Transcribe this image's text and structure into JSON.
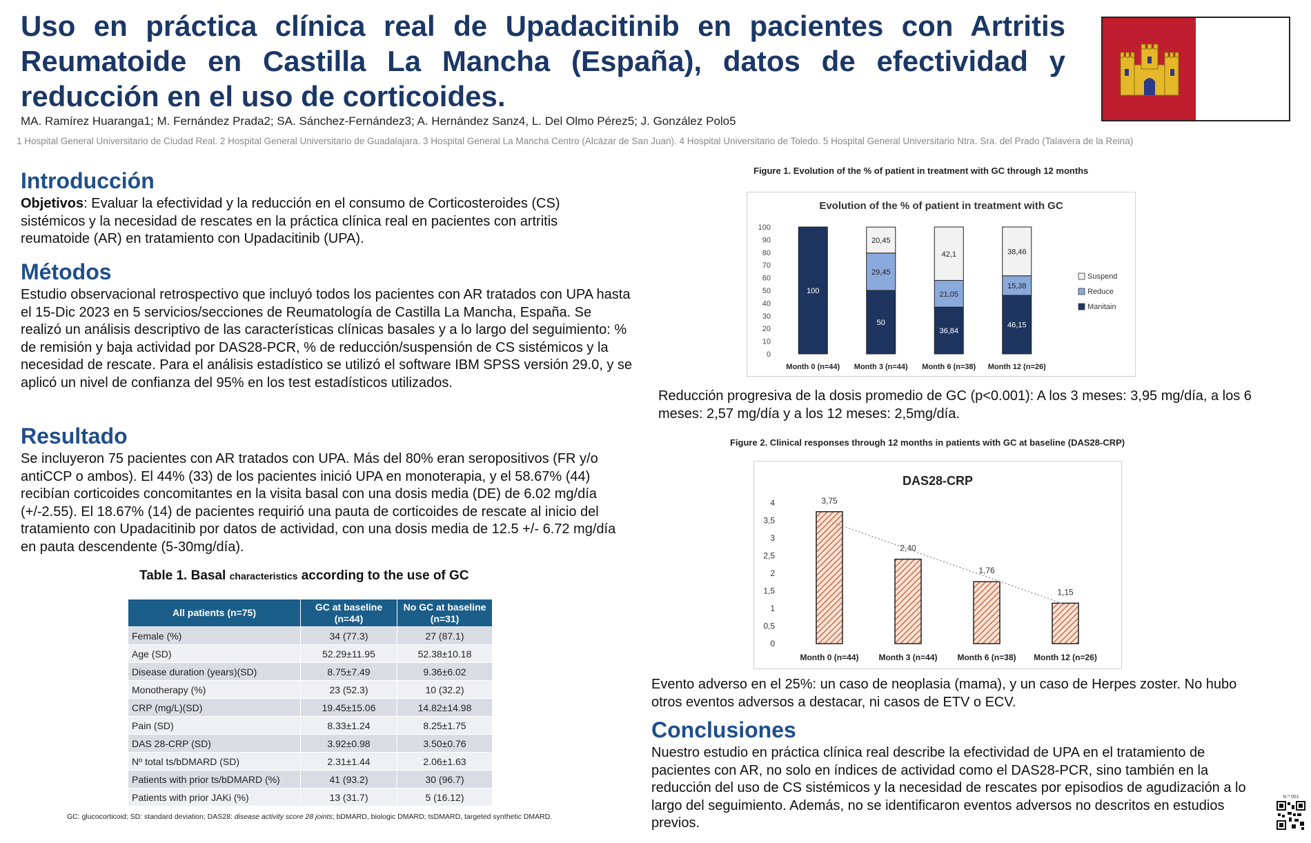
{
  "header": {
    "title": "Uso en práctica clínica real de Upadacitinib en pacientes con Artritis Reumatoide en Castilla La Mancha (España), datos de efectividad y reducción en el uso de corticoides.",
    "authors": "MA. Ramírez Huaranga1; M. Fernández Prada2; SA. Sánchez-Fernández3; A. Hernández Sanz4, L. Del Olmo Pérez5; J. González Polo5",
    "affiliations": "1 Hospital General Universitario de Ciudad Real. 2 Hospital General Universitario de Guadalajara. 3 Hospital General La Mancha Centro (Alcázar de San Juan). 4 Hospital Universitario de Toledo. 5 Hospital General Universitario Ntra. Sra. del Prado (Talavera de la Reina)"
  },
  "colors": {
    "title": "#1a3766",
    "heading": "#1f4e8c",
    "maintain": "#1e3560",
    "reduce": "#8aa9dc",
    "suspend": "#f2f2f2",
    "flag_red": "#c01d2e",
    "table_header": "#1c5e8a",
    "das_bar": "#e89b78"
  },
  "intro": {
    "heading": "Introducción",
    "label": "Objetivos",
    "text": ":  Evaluar la efectividad y la reducción en el consumo de Corticosteroides (CS) sistémicos y la necesidad de  rescates en la práctica clínica real en pacientes con artritis reumatoide (AR) en tratamiento con Upadacitinib (UPA)."
  },
  "methods": {
    "heading": "Métodos",
    "text": "Estudio observacional retrospectivo que incluyó todos los pacientes con AR tratados con UPA hasta el 15-Dic 2023 en 5 servicios/secciones de Reumatología de Castilla La Mancha, España. Se realizó un análisis descriptivo de las características clínicas basales y a lo largo del seguimiento:  % de remisión y baja  actividad por DAS28-PCR, % de reducción/suspensión de CS sistémicos y la necesidad de rescate. Para el análisis estadístico se utilizó el software IBM SPSS versión 29.0, y se aplicó un nivel de confianza del 95% en los test estadísticos utilizados."
  },
  "results": {
    "heading": "Resultado",
    "text": "Se incluyeron 75 pacientes con AR tratados con UPA. Más del 80% eran seropositivos (FR y/o antiCCP o  ambos). El 44% (33) de los pacientes inició UPA en monoterapia, y el 58.67% (44) recibían corticoides concomitantes en la  visita basal con una dosis media (DE) de 6.02 mg/día (+/-2.55). El 18.67% (14) de pacientes requirió una pauta de corticoides de rescate al inicio del tratamiento con Upadacitinib por datos de actividad, con una dosis media de 12.5 +/- 6.72 mg/día en pauta descendente (5-30mg/día)."
  },
  "table1": {
    "title_a": "Table 1. Basal ",
    "title_b": "characteristics",
    "title_c": " according to the use of GC",
    "headers": [
      "All patients (n=75)",
      "GC at baseline (n=44)",
      "No GC at baseline (n=31)"
    ],
    "rows": [
      [
        "Female (%)",
        "34 (77.3)",
        "27 (87.1)"
      ],
      [
        "Age (SD)",
        "52.29±11.95",
        "52.38±10.18"
      ],
      [
        "Disease duration (years)(SD)",
        "8.75±7.49",
        "9.36±6.02"
      ],
      [
        "Monotherapy (%)",
        "23 (52.3)",
        "10 (32.2)"
      ],
      [
        "CRP (mg/L)(SD)",
        "19.45±15.06",
        "14.82±14.98"
      ],
      [
        "Pain (SD)",
        "8.33±1.24",
        "8.25±1.75"
      ],
      [
        "DAS 28-CRP (SD)",
        "3.92±0.98",
        "3.50±0.76"
      ],
      [
        "Nº total ts/bDMARD (SD)",
        "2.31±1.44",
        "2.06±1.63"
      ],
      [
        "Patients with prior ts/bDMARD (%)",
        "41 (93.2)",
        "30 (96.7)"
      ],
      [
        "Patients with prior JAKi (%)",
        "13 (31.7)",
        "5 (16.12)"
      ]
    ],
    "note_a": "GC: glucocorticoid; SD: standard deviation; DAS28: ",
    "note_b": "disease activity score 28 joints",
    "note_c": "; bDMARD, biologic DMARD; tsDMARD, targeted synthetic DMARD."
  },
  "figure1": {
    "caption": "Figure 1. Evolution of the % of patient in treatment with GC through 12 months",
    "note": "Reducción progresiva de la dosis promedio de GC (p<0.001): A los 3 meses: 3,95 mg/día, a los 6 meses: 2,57 mg/día y a los 12 meses: 2,5mg/día."
  },
  "figure2": {
    "caption": "Figure 2. Clinical responses through 12 months in patients with GC at baseline (DAS28-CRP)"
  },
  "chart_data": [
    {
      "type": "bar",
      "stacked": true,
      "title": "Evolution of the % of patient in treatment with GC",
      "categories": [
        "Month 0 (n=44)",
        "Month 3 (n=44)",
        "Month 6 (n=38)",
        "Month 12 (n=26)"
      ],
      "series": [
        {
          "name": "Maintain",
          "values": [
            100,
            50,
            36.84,
            46.15
          ],
          "labels": [
            "100",
            "50",
            "36,84",
            "46,15"
          ]
        },
        {
          "name": "Reduce",
          "values": [
            0,
            29.45,
            21.05,
            15.38
          ],
          "labels": [
            "",
            "29,45",
            "21,05",
            "15,38"
          ]
        },
        {
          "name": "Suspend",
          "values": [
            0,
            20.45,
            42.1,
            38.46
          ],
          "labels": [
            "",
            "20,45",
            "42,1",
            "38,46"
          ]
        }
      ],
      "yticks": [
        "0",
        "10",
        "20",
        "30",
        "40",
        "50",
        "60",
        "70",
        "80",
        "90",
        "100"
      ],
      "ylim": [
        0,
        100
      ],
      "legend": "right",
      "legend_labels": [
        "Suspend",
        "Reduce",
        "Manitain"
      ]
    },
    {
      "type": "bar",
      "title": "DAS28-CRP",
      "categories": [
        "Month 0 (n=44)",
        "Month 3 (n=44)",
        "Month 6 (n=38)",
        "Month 12 (n=26)"
      ],
      "values": [
        3.75,
        2.4,
        1.76,
        1.15
      ],
      "labels": [
        "3,75",
        "2,40",
        "1,76",
        "1,15"
      ],
      "yticks": [
        "0",
        "0,5",
        "1",
        "1,5",
        "2",
        "2,5",
        "3",
        "3,5",
        "4"
      ],
      "ylim": [
        0,
        4
      ],
      "trendline": true
    }
  ],
  "adverse": {
    "text": "Evento adverso en el 25%: un caso de neoplasia (mama), y un caso de Herpes zoster. No hubo otros eventos adversos a destacar, ni casos de ETV o ECV."
  },
  "conclusions": {
    "heading": "Conclusiones",
    "text": "Nuestro estudio en práctica clínica real describe la efectividad de UPA en el tratamiento de pacientes con AR, no solo en índices de actividad como el DAS28-PCR, sino también en la reducción del uso de CS sistémicos y la necesidad de rescates por episodios de agudización a lo largo del seguimiento. Además, no se identificaron  eventos adversos no descritos en estudios previos."
  },
  "qr": {
    "label": "N.º 001"
  }
}
